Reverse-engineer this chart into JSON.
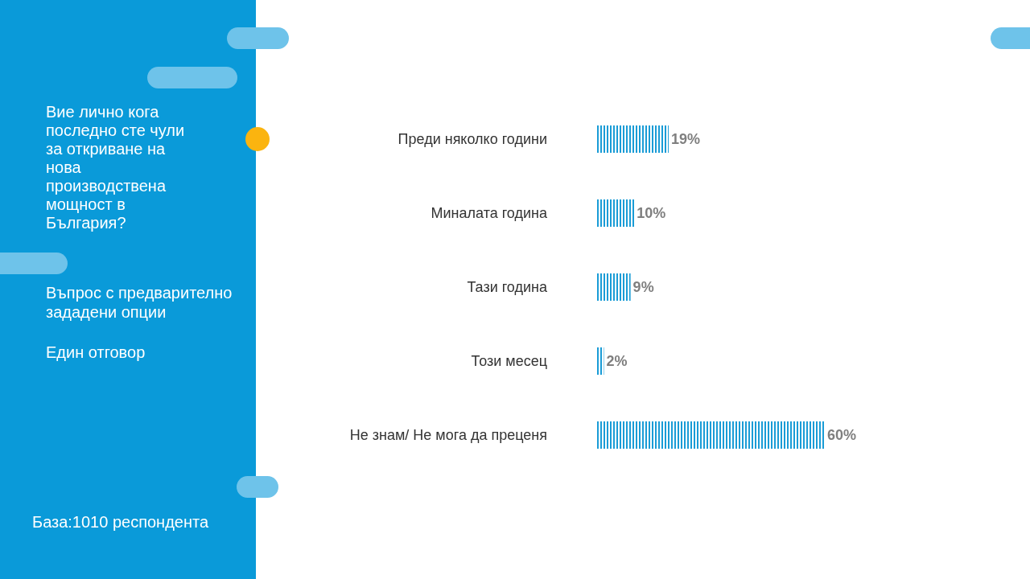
{
  "chart_data": {
    "type": "bar",
    "orientation": "horizontal",
    "title": "Вие лично кога последно сте чули за откриване на нова производствена мощност в България?",
    "subtitle": "Въпрос с предварително зададени опции",
    "annotations": [
      "Един отговор",
      "База:1010 респондента"
    ],
    "categories": [
      "Преди няколко години",
      "Миналата година",
      "Тази година",
      "Този месец",
      "Не знам/ Не мога да преценя"
    ],
    "values": [
      19,
      10,
      9,
      2,
      60
    ],
    "value_labels": [
      "19%",
      "10%",
      "9%",
      "2%",
      "60%"
    ],
    "color": "#1a9cd6"
  }
}
